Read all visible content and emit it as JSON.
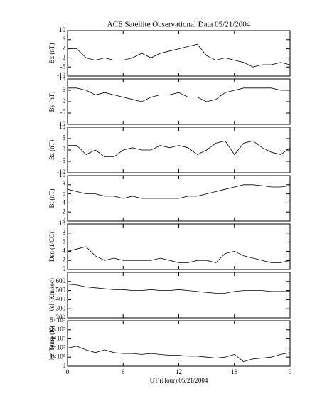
{
  "chart_data": [
    {
      "type": "line",
      "title": "ACE Satellite Observational Data   05/21/2004",
      "ylabel": "Bx (nT)",
      "ylim": [
        -10,
        10
      ],
      "yticks": [
        10,
        6,
        2,
        -2,
        -6,
        -10
      ],
      "color": "#000000",
      "x": [
        0,
        1,
        2,
        3,
        4,
        5,
        6,
        7,
        8,
        9,
        10,
        11,
        12,
        13,
        14,
        15,
        16,
        17,
        18,
        19,
        20,
        21,
        22,
        23,
        24
      ],
      "series": [
        {
          "name": "Bx",
          "values": [
            2,
            2,
            -2,
            -3,
            -2,
            -3,
            -3,
            -2,
            0,
            -2,
            0,
            1,
            2,
            3,
            4,
            -1,
            -3,
            -2,
            -3,
            -4,
            -6,
            -5,
            -5,
            -4,
            -5
          ]
        }
      ]
    },
    {
      "type": "line",
      "ylabel": "By (nT)",
      "ylim": [
        -10,
        10
      ],
      "yticks": [
        10,
        5,
        0,
        -5,
        -10
      ],
      "color": "#000000",
      "x": [
        0,
        1,
        2,
        3,
        4,
        5,
        6,
        7,
        8,
        9,
        10,
        11,
        12,
        13,
        14,
        15,
        16,
        17,
        18,
        19,
        20,
        21,
        22,
        23,
        24
      ],
      "series": [
        {
          "name": "By",
          "values": [
            6,
            6,
            5,
            3,
            4,
            3,
            2,
            1,
            0,
            2,
            3,
            3,
            4,
            2,
            2,
            0,
            1,
            4,
            5,
            6,
            6,
            6,
            6,
            5,
            5
          ]
        }
      ]
    },
    {
      "type": "line",
      "ylabel": "Bz (nT)",
      "ylim": [
        -10,
        10
      ],
      "yticks": [
        10,
        5,
        0,
        -5,
        -10
      ],
      "color": "#000000",
      "x": [
        0,
        1,
        2,
        3,
        4,
        5,
        6,
        7,
        8,
        9,
        10,
        11,
        12,
        13,
        14,
        15,
        16,
        17,
        18,
        19,
        20,
        21,
        22,
        23,
        24
      ],
      "series": [
        {
          "name": "Bz",
          "values": [
            2,
            2,
            -2,
            0,
            -3,
            -3,
            0,
            1,
            0,
            0,
            2,
            1,
            2,
            1,
            -2,
            0,
            3,
            4,
            -2,
            3,
            4,
            1,
            -1,
            -2,
            1
          ]
        }
      ]
    },
    {
      "type": "line",
      "ylabel": "Bt (nT)",
      "ylim": [
        0,
        10
      ],
      "yticks": [
        10,
        8,
        6,
        4,
        2,
        0
      ],
      "color": "#000000",
      "x": [
        0,
        1,
        2,
        3,
        4,
        5,
        6,
        7,
        8,
        9,
        10,
        11,
        12,
        13,
        14,
        15,
        16,
        17,
        18,
        19,
        20,
        21,
        22,
        23,
        24
      ],
      "series": [
        {
          "name": "Bt",
          "values": [
            7,
            6.5,
            6,
            6,
            5.5,
            5.5,
            5,
            5.5,
            5,
            5,
            5,
            5,
            5,
            5.5,
            5.5,
            6,
            6.5,
            7,
            7.5,
            8,
            8,
            7.8,
            7.5,
            7.5,
            7.8
          ]
        }
      ]
    },
    {
      "type": "line",
      "ylabel": "Den (1/CC)",
      "ylim": [
        0,
        10
      ],
      "yticks": [
        10,
        8,
        6,
        4,
        2,
        0
      ],
      "color": "#000000",
      "x": [
        0,
        1,
        2,
        3,
        4,
        5,
        6,
        7,
        8,
        9,
        10,
        11,
        12,
        13,
        14,
        15,
        16,
        17,
        18,
        19,
        20,
        21,
        22,
        23,
        24
      ],
      "series": [
        {
          "name": "Den",
          "values": [
            4,
            4.5,
            5,
            3,
            2,
            2.5,
            2,
            2,
            2,
            2,
            2.5,
            2,
            1.5,
            1.5,
            2,
            2,
            1.5,
            3.5,
            4,
            3,
            2.5,
            2,
            1.5,
            1.5,
            2
          ]
        }
      ]
    },
    {
      "type": "line",
      "ylabel": "Vel (Km/sec)",
      "ylim": [
        200,
        700
      ],
      "yticks": [
        600,
        500,
        400,
        300,
        200
      ],
      "color": "#000000",
      "x": [
        0,
        1,
        2,
        3,
        4,
        5,
        6,
        7,
        8,
        9,
        10,
        11,
        12,
        13,
        14,
        15,
        16,
        17,
        18,
        19,
        20,
        21,
        22,
        23,
        24
      ],
      "series": [
        {
          "name": "Vel",
          "values": [
            570,
            560,
            540,
            530,
            520,
            510,
            510,
            500,
            500,
            510,
            500,
            500,
            510,
            500,
            490,
            480,
            470,
            470,
            490,
            500,
            500,
            500,
            490,
            490,
            490
          ]
        }
      ]
    },
    {
      "type": "line",
      "ylabel": "Ion Temp (K)",
      "ylim": [
        0,
        500000
      ],
      "yticks": [
        {
          "value": 500000,
          "label": "5×10⁵"
        },
        {
          "value": 400000,
          "label": "4×10⁵"
        },
        {
          "value": 300000,
          "label": "3×10⁵"
        },
        {
          "value": 200000,
          "label": "2×10⁵"
        },
        {
          "value": 100000,
          "label": "1×10⁵"
        },
        0
      ],
      "color": "#000000",
      "xlabel": "UT (Hour)   05/21/2004",
      "xlim": [
        0,
        24
      ],
      "xticks": [
        0,
        6,
        12,
        18,
        {
          "value": 24,
          "label": "0"
        }
      ],
      "x": [
        0,
        1,
        2,
        3,
        4,
        5,
        6,
        7,
        8,
        9,
        10,
        11,
        12,
        13,
        14,
        15,
        16,
        17,
        18,
        19,
        20,
        21,
        22,
        23,
        24
      ],
      "series": [
        {
          "name": "Ion Temp",
          "values": [
            200000,
            220000,
            180000,
            150000,
            180000,
            150000,
            140000,
            140000,
            130000,
            140000,
            130000,
            120000,
            120000,
            110000,
            110000,
            100000,
            90000,
            100000,
            130000,
            50000,
            80000,
            90000,
            100000,
            130000,
            150000
          ]
        }
      ]
    }
  ]
}
